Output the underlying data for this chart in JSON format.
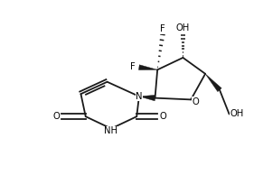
{
  "background_color": "#ffffff",
  "figsize": [
    2.91,
    1.94
  ],
  "dpi": 100,
  "bond_color": "#1a1a1a",
  "label_fontsize": 7.2,
  "label_color": "#000000",
  "xlim": [
    0.0,
    9.0
  ],
  "ylim": [
    0.0,
    6.0
  ]
}
